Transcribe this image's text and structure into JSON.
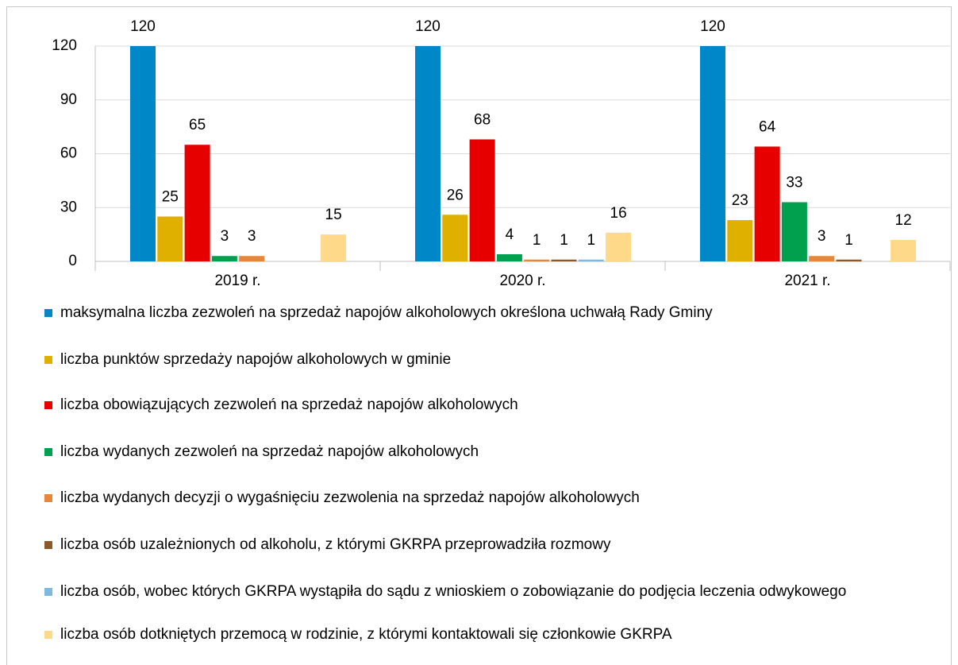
{
  "chart_data": {
    "type": "bar",
    "categories": [
      "2019 r.",
      "2020 r.",
      "2021 r."
    ],
    "series": [
      {
        "name": "maksymalna liczba zezwoleń na sprzedaż napojów alkoholowych określona uchwałą Rady Gminy",
        "color": "#0087c8",
        "values": [
          120,
          120,
          120
        ]
      },
      {
        "name": "liczba punktów sprzedaży napojów alkoholowych w gminie",
        "color": "#e0b000",
        "values": [
          25,
          26,
          23
        ]
      },
      {
        "name": "liczba obowiązujących zezwoleń na sprzedaż napojów alkoholowych",
        "color": "#e60000",
        "values": [
          65,
          68,
          64
        ]
      },
      {
        "name": "liczba wydanych zezwoleń na sprzedaż napojów alkoholowych",
        "color": "#00a04e",
        "values": [
          3,
          4,
          33
        ]
      },
      {
        "name": "liczba wydanych decyzji o wygaśnięciu zezwolenia na sprzedaż napojów alkoholowych",
        "color": "#e8873a",
        "values": [
          3,
          1,
          3
        ]
      },
      {
        "name": "liczba osób uzależnionych od alkoholu, z którymi GKRPA przeprowadziła rozmowy",
        "color": "#8b5a2b",
        "values": [
          null,
          1,
          1
        ]
      },
      {
        "name": "liczba osób, wobec których GKRPA wystąpiła do sądu z wnioskiem o zobowiązanie do podjęcia leczenia odwykowego",
        "color": "#7fb8e0",
        "values": [
          null,
          1,
          null
        ]
      },
      {
        "name": "liczba osób dotkniętych przemocą w rodzinie, z którymi kontaktowali się członkowie GKRPA",
        "color": "#ffd98a",
        "values": [
          15,
          16,
          12
        ]
      }
    ],
    "ylim": [
      0,
      120
    ],
    "yticks": [
      0,
      30,
      60,
      90,
      120
    ],
    "grid": true
  }
}
